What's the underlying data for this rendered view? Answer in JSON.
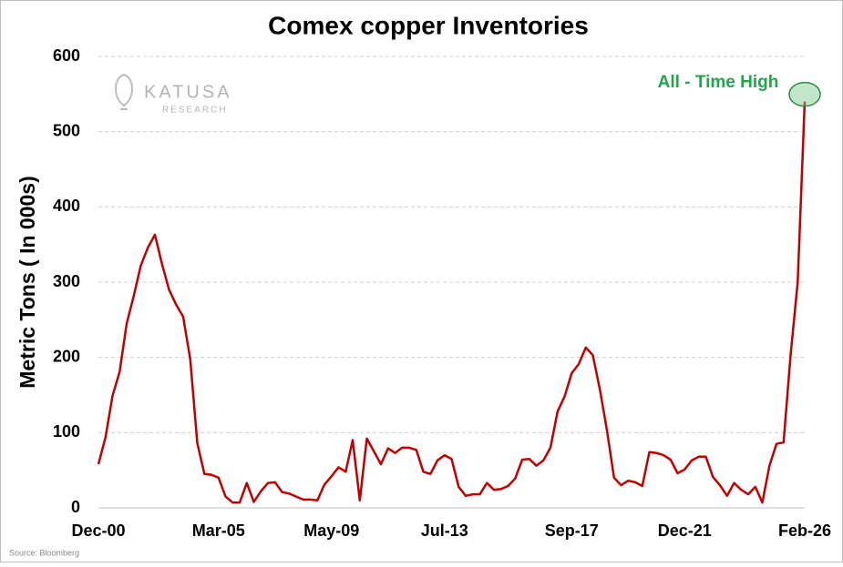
{
  "chart_data": {
    "type": "line",
    "title": "Comex copper Inventories",
    "y_label": "Metric Tons ( In 000s)",
    "annotation": "All - Time High",
    "logo_text": "KATUSA",
    "logo_subtext": "RESEARCH",
    "source": "Source: Bloomberg",
    "categories": [
      "Dec-00",
      null,
      null,
      null,
      null,
      null,
      null,
      null,
      null,
      null,
      null,
      null,
      null,
      null,
      null,
      null,
      null,
      "Mar-05",
      null,
      null,
      null,
      null,
      null,
      null,
      null,
      null,
      null,
      null,
      null,
      null,
      null,
      null,
      null,
      "May-09",
      null,
      null,
      null,
      null,
      null,
      null,
      null,
      null,
      null,
      null,
      null,
      null,
      null,
      null,
      null,
      "Jul-13",
      null,
      null,
      null,
      null,
      null,
      null,
      null,
      null,
      null,
      null,
      null,
      null,
      null,
      null,
      null,
      null,
      null,
      "Sep-17",
      null,
      null,
      null,
      null,
      null,
      null,
      null,
      null,
      null,
      null,
      null,
      null,
      null,
      null,
      null,
      "Dec-21",
      null,
      null,
      null,
      null,
      null,
      null,
      null,
      null,
      null,
      null,
      null,
      null,
      null,
      null,
      null,
      null,
      "Feb-26"
    ],
    "series": [
      {
        "name": "Comex copper inventories",
        "color": "#c00000",
        "values": [
          58,
          94,
          149,
          181,
          245,
          282,
          322,
          346,
          363,
          324,
          290,
          270,
          254,
          197,
          86,
          45,
          44,
          40,
          15,
          7,
          7,
          33,
          8,
          22,
          33,
          34,
          21,
          19,
          15,
          11,
          11,
          10,
          31,
          42,
          54,
          48,
          90,
          10,
          92,
          75,
          58,
          79,
          73,
          80,
          80,
          77,
          48,
          45,
          63,
          70,
          65,
          28,
          16,
          18,
          18,
          33,
          24,
          25,
          29,
          39,
          64,
          65,
          56,
          63,
          80,
          128,
          148,
          179,
          191,
          213,
          203,
          157,
          103,
          40,
          30,
          36,
          34,
          29,
          74,
          73,
          70,
          64,
          46,
          51,
          63,
          68,
          68,
          41,
          30,
          16,
          33,
          24,
          18,
          28,
          7,
          56,
          85,
          87,
          203,
          300,
          540
        ]
      }
    ],
    "ylim": [
      0,
      600
    ],
    "yticks": [
      0,
      100,
      200,
      300,
      400,
      500,
      600
    ],
    "grid": true
  }
}
